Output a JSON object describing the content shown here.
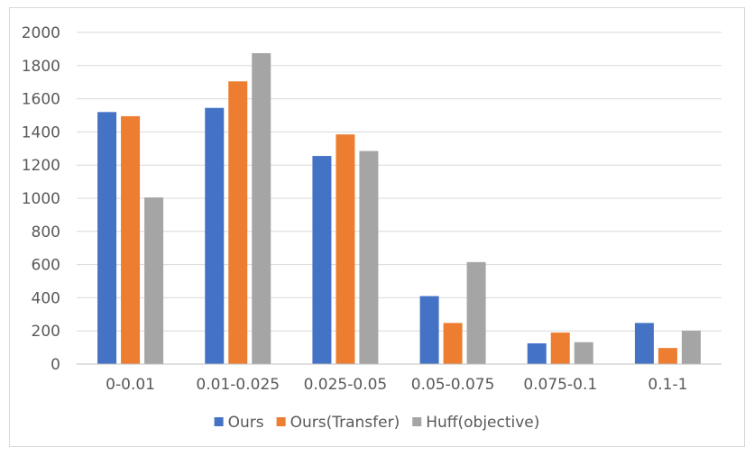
{
  "chart_data": {
    "type": "bar",
    "title": "",
    "xlabel": "",
    "ylabel": "",
    "categories": [
      "0-0.01",
      "0.01-0.025",
      "0.025-0.05",
      "0.05-0.075",
      "0.075-0.1",
      "0.1-1"
    ],
    "series": [
      {
        "name": "Ours",
        "color": "#4472C4",
        "values": [
          1520,
          1545,
          1255,
          410,
          125,
          248
        ]
      },
      {
        "name": "Ours(Transfer)",
        "color": "#ED7D31",
        "values": [
          1495,
          1705,
          1385,
          248,
          190,
          97
        ]
      },
      {
        "name": "Huff(objective)",
        "color": "#A5A5A5",
        "values": [
          1005,
          1875,
          1285,
          615,
          132,
          202
        ]
      }
    ],
    "ylim": [
      0,
      2000
    ],
    "yticks": [
      0,
      200,
      400,
      600,
      800,
      1000,
      1200,
      1400,
      1600,
      1800,
      2000
    ],
    "grid": true,
    "legend_position": "bottom"
  }
}
